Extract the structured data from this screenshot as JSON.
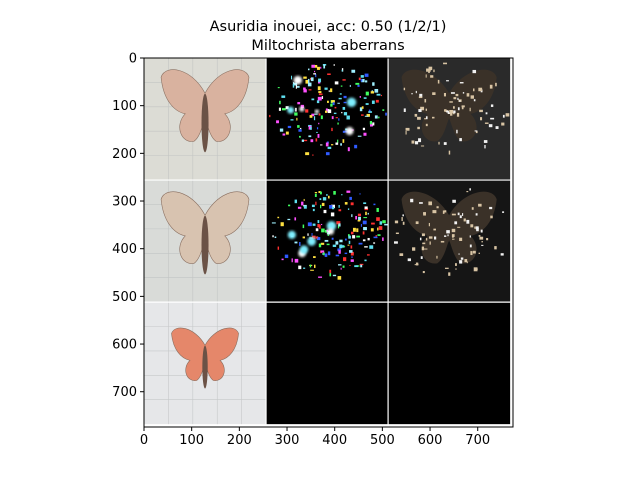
{
  "figure": {
    "title_line1": "Asuridia inouei, acc: 0.50 (1/2/1)",
    "title_line2": "Miltochrista aberrans"
  },
  "axes": {
    "x_ticks": [
      "0",
      "100",
      "200",
      "300",
      "400",
      "500",
      "600",
      "700"
    ],
    "y_ticks": [
      "0",
      "100",
      "200",
      "300",
      "400",
      "500",
      "600",
      "700"
    ],
    "x_range": [
      0,
      774
    ],
    "y_range": [
      0,
      774
    ]
  },
  "grid": {
    "rows": 3,
    "cols": 3,
    "tile_size": 256,
    "separator_color": "#ffffff",
    "tiles": [
      {
        "row": 0,
        "col": 0,
        "kind": "photo",
        "moth_color": "#d9b29f",
        "background": "#dcdcd5"
      },
      {
        "row": 0,
        "col": 1,
        "kind": "saliency-color",
        "background": "#000000"
      },
      {
        "row": 0,
        "col": 2,
        "kind": "masked-dark",
        "background": "#2a2a2a"
      },
      {
        "row": 1,
        "col": 0,
        "kind": "photo",
        "moth_color": "#d8c3b0",
        "background": "#d9dbd8"
      },
      {
        "row": 1,
        "col": 1,
        "kind": "saliency-color",
        "background": "#000000"
      },
      {
        "row": 1,
        "col": 2,
        "kind": "masked-dark",
        "background": "#151515"
      },
      {
        "row": 2,
        "col": 0,
        "kind": "photo",
        "moth_color": "#e5876a",
        "background": "#e6e7e9"
      },
      {
        "row": 2,
        "col": 1,
        "kind": "empty",
        "background": "#000000"
      },
      {
        "row": 2,
        "col": 2,
        "kind": "empty",
        "background": "#000000"
      }
    ]
  }
}
